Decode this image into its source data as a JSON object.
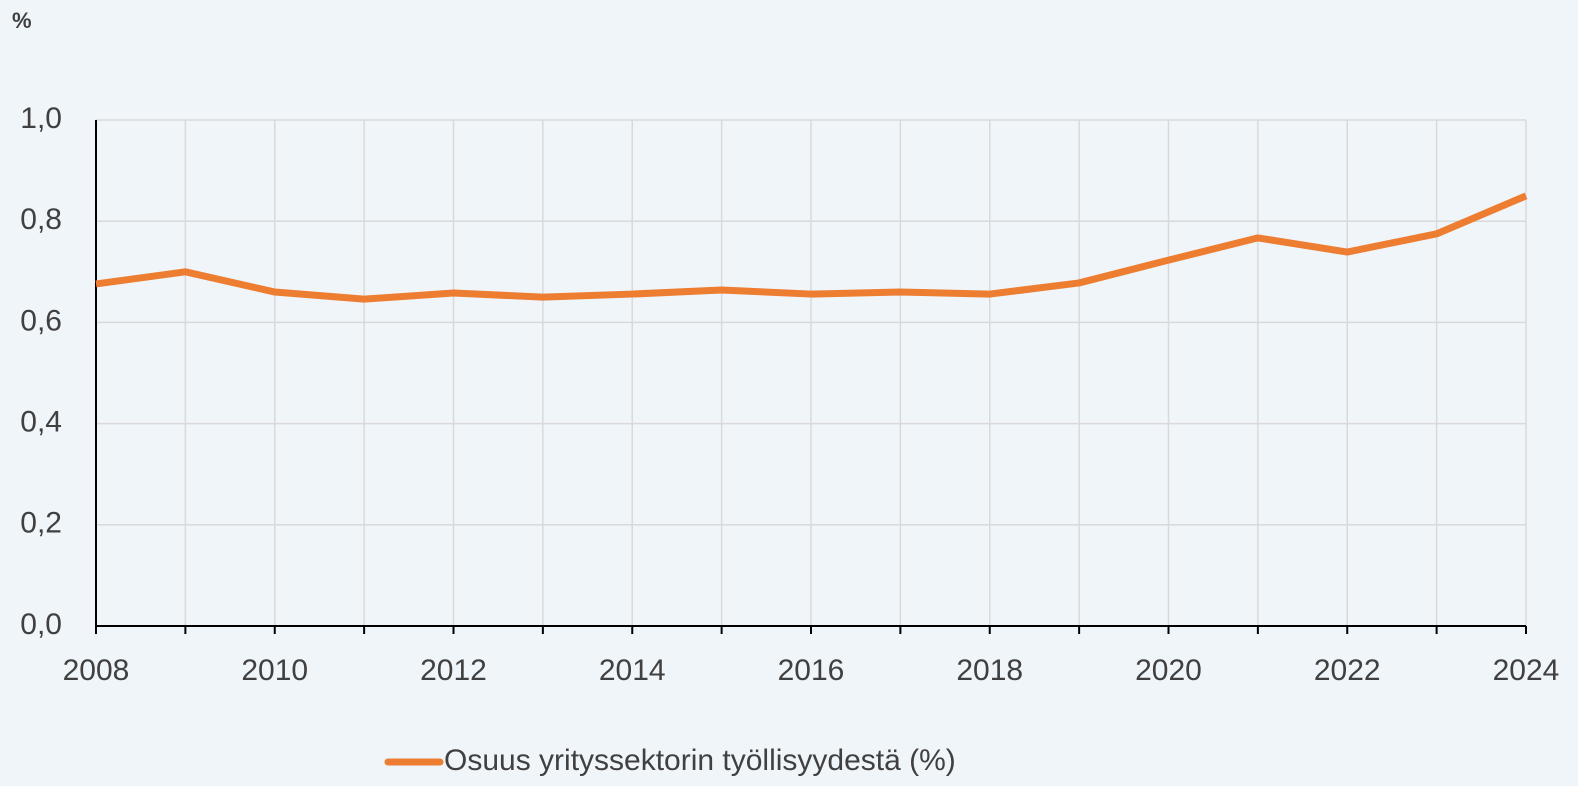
{
  "chart_data": {
    "type": "line",
    "ylabel": "%",
    "x": [
      2008,
      2009,
      2010,
      2011,
      2012,
      2013,
      2014,
      2015,
      2016,
      2017,
      2018,
      2019,
      2020,
      2021,
      2022,
      2023,
      2024
    ],
    "series": [
      {
        "name": "Osuus yrityssektorin työllisyydestä (%)",
        "color": "#ed7d31",
        "values": [
          0.676,
          0.7,
          0.66,
          0.646,
          0.658,
          0.65,
          0.656,
          0.664,
          0.656,
          0.66,
          0.656,
          0.678,
          0.723,
          0.767,
          0.739,
          0.775,
          0.85
        ]
      }
    ],
    "xlim": [
      2008,
      2024
    ],
    "xticks": [
      2008,
      2010,
      2012,
      2014,
      2016,
      2018,
      2020,
      2022,
      2024
    ],
    "xminorticks": [
      2009,
      2011,
      2013,
      2015,
      2017,
      2019,
      2021,
      2023
    ],
    "ylim": [
      0,
      1
    ],
    "yticks": [
      {
        "value": 0,
        "label": "0,0"
      },
      {
        "value": 0.2,
        "label": "0,2"
      },
      {
        "value": 0.4,
        "label": "0,4"
      },
      {
        "value": 0.6,
        "label": "0,6"
      },
      {
        "value": 0.8,
        "label": "0,8"
      },
      {
        "value": 1,
        "label": "1,0"
      }
    ],
    "grid": true,
    "legend": "bottom"
  }
}
